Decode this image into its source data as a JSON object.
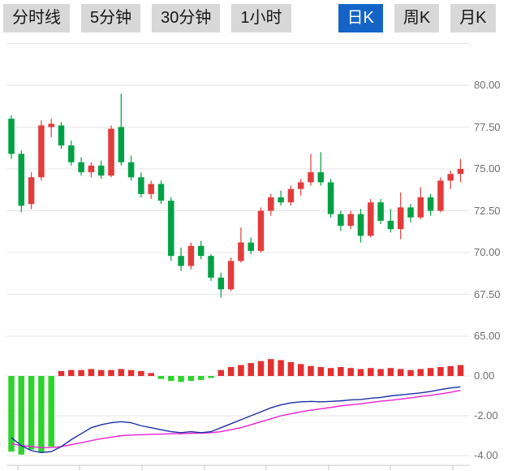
{
  "toolbar": {
    "buttons": [
      {
        "label": "分时线",
        "active": false
      },
      {
        "label": "5分钟",
        "active": false
      },
      {
        "label": "30分钟",
        "active": false
      },
      {
        "label": "1小时",
        "active": false
      },
      {
        "label": "日K",
        "active": true
      },
      {
        "label": "周K",
        "active": false
      },
      {
        "label": "月K",
        "active": false
      }
    ]
  },
  "colors": {
    "up": "#e23c3c",
    "down": "#00a145",
    "macd_up": "#e23030",
    "macd_down": "#2ed32e",
    "dif_line": "#1c2fa8",
    "dea_line": "#ec1fd4",
    "grid": "#e5e5e5",
    "axis": "#c9c9c9",
    "label": "#6f6f6f",
    "active_button_bg": "#1464c8"
  },
  "chart_data": {
    "type": "candlestick+macd",
    "title": "",
    "price_axis_labels": [
      "80.00",
      "77.50",
      "75.00",
      "72.50",
      "70.00",
      "67.50",
      "65.00"
    ],
    "macd_axis_labels": [
      "0.00",
      "-2.00",
      "-4.00"
    ],
    "price_axis_values": [
      80,
      77.5,
      75,
      72.5,
      70,
      67.5,
      65
    ],
    "macd_axis_values": [
      0,
      -2,
      -4
    ],
    "candles_ohlc": [
      [
        78.0,
        78.2,
        75.6,
        75.9
      ],
      [
        75.9,
        76.1,
        72.4,
        72.8
      ],
      [
        72.9,
        74.8,
        72.6,
        74.5
      ],
      [
        74.5,
        77.9,
        74.3,
        77.6
      ],
      [
        77.5,
        78.0,
        76.9,
        77.7
      ],
      [
        77.6,
        77.8,
        76.2,
        76.4
      ],
      [
        76.4,
        76.7,
        75.2,
        75.4
      ],
      [
        75.4,
        75.7,
        74.6,
        74.8
      ],
      [
        74.8,
        75.4,
        74.5,
        75.2
      ],
      [
        75.2,
        75.5,
        74.4,
        74.6
      ],
      [
        74.6,
        77.6,
        74.5,
        77.4
      ],
      [
        77.5,
        79.5,
        75.2,
        75.4
      ],
      [
        75.4,
        75.8,
        74.3,
        74.5
      ],
      [
        74.5,
        74.8,
        73.3,
        73.5
      ],
      [
        73.5,
        74.3,
        73.2,
        74.1
      ],
      [
        74.1,
        74.3,
        72.9,
        73.1
      ],
      [
        73.1,
        73.3,
        69.5,
        69.8
      ],
      [
        69.8,
        70.3,
        68.9,
        69.2
      ],
      [
        69.2,
        70.6,
        69.0,
        70.4
      ],
      [
        70.4,
        70.7,
        69.6,
        69.8
      ],
      [
        69.8,
        69.9,
        68.3,
        68.5
      ],
      [
        68.5,
        68.8,
        67.3,
        67.8
      ],
      [
        67.8,
        69.7,
        67.7,
        69.5
      ],
      [
        69.5,
        71.5,
        69.4,
        70.6
      ],
      [
        70.6,
        70.9,
        69.9,
        70.1
      ],
      [
        70.1,
        72.7,
        70.0,
        72.5
      ],
      [
        72.5,
        73.5,
        72.2,
        73.3
      ],
      [
        73.3,
        73.7,
        72.8,
        73.0
      ],
      [
        73.0,
        74.0,
        72.8,
        73.8
      ],
      [
        73.8,
        74.4,
        73.4,
        74.2
      ],
      [
        74.2,
        75.9,
        74.0,
        74.8
      ],
      [
        74.8,
        76.0,
        74.0,
        74.2
      ],
      [
        74.2,
        74.4,
        72.1,
        72.3
      ],
      [
        72.3,
        72.5,
        71.3,
        71.6
      ],
      [
        71.6,
        72.5,
        71.4,
        72.3
      ],
      [
        72.3,
        72.6,
        70.6,
        71.0
      ],
      [
        71.0,
        73.2,
        70.9,
        73.0
      ],
      [
        73.0,
        73.2,
        71.7,
        71.9
      ],
      [
        71.9,
        72.6,
        71.2,
        71.4
      ],
      [
        71.4,
        73.6,
        70.8,
        72.7
      ],
      [
        72.7,
        72.9,
        71.8,
        72.1
      ],
      [
        72.1,
        73.9,
        72.0,
        73.3
      ],
      [
        73.3,
        73.5,
        72.2,
        72.5
      ],
      [
        72.5,
        74.5,
        72.4,
        74.3
      ],
      [
        74.3,
        74.9,
        73.8,
        74.7
      ],
      [
        74.7,
        75.6,
        74.2,
        75.0
      ]
    ],
    "macd": {
      "histogram": [
        -3.8,
        -3.95,
        -3.7,
        -3.85,
        -3.55,
        0.25,
        0.3,
        0.3,
        0.35,
        0.3,
        0.3,
        0.35,
        0.3,
        0.25,
        0.15,
        -0.15,
        -0.25,
        -0.3,
        -0.25,
        -0.2,
        -0.1,
        0.3,
        0.45,
        0.55,
        0.65,
        0.75,
        0.85,
        0.8,
        0.7,
        0.6,
        0.5,
        0.45,
        0.4,
        0.45,
        0.4,
        0.35,
        0.4,
        0.35,
        0.4,
        0.35,
        0.3,
        0.35,
        0.4,
        0.45,
        0.5,
        0.55
      ],
      "dif": [
        -3.1,
        -3.5,
        -3.75,
        -3.85,
        -3.8,
        -3.55,
        -3.2,
        -2.9,
        -2.6,
        -2.45,
        -2.35,
        -2.3,
        -2.35,
        -2.5,
        -2.6,
        -2.7,
        -2.8,
        -2.85,
        -2.8,
        -2.85,
        -2.8,
        -2.6,
        -2.4,
        -2.2,
        -2.0,
        -1.8,
        -1.6,
        -1.45,
        -1.35,
        -1.3,
        -1.28,
        -1.3,
        -1.28,
        -1.25,
        -1.2,
        -1.18,
        -1.12,
        -1.08,
        -1.0,
        -0.95,
        -0.9,
        -0.85,
        -0.78,
        -0.68,
        -0.6,
        -0.55
      ],
      "dea": [
        -3.4,
        -3.5,
        -3.55,
        -3.6,
        -3.6,
        -3.55,
        -3.45,
        -3.35,
        -3.25,
        -3.15,
        -3.08,
        -3.0,
        -2.97,
        -2.95,
        -2.93,
        -2.92,
        -2.9,
        -2.9,
        -2.88,
        -2.87,
        -2.85,
        -2.8,
        -2.7,
        -2.6,
        -2.45,
        -2.3,
        -2.15,
        -2.0,
        -1.9,
        -1.8,
        -1.72,
        -1.65,
        -1.58,
        -1.5,
        -1.45,
        -1.4,
        -1.33,
        -1.27,
        -1.22,
        -1.16,
        -1.1,
        -1.03,
        -0.97,
        -0.9,
        -0.82,
        -0.72
      ]
    }
  }
}
